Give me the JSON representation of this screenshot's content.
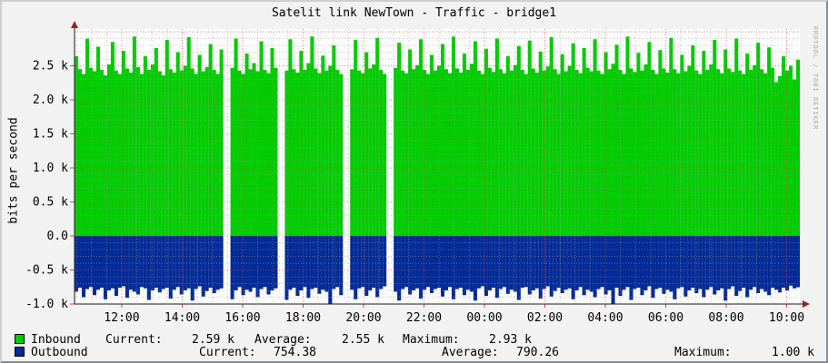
{
  "window": {
    "watermark": "RRDTOOL / TOBI OETIKER"
  },
  "chart_data": {
    "type": "area",
    "title": "Satelit link NewTown - Traffic - bridge1",
    "ylabel": "bits per second",
    "ylim": [
      -1000,
      3000
    ],
    "grid": "on",
    "legend_position": "bottom",
    "y_ticks": [
      {
        "label": "2.5 k",
        "value": 2500
      },
      {
        "label": "2.0 k",
        "value": 2000
      },
      {
        "label": "1.5 k",
        "value": 1500
      },
      {
        "label": "1.0 k",
        "value": 1000
      },
      {
        "label": "0.5 k",
        "value": 500
      },
      {
        "label": "0.0",
        "value": 0
      },
      {
        "label": "-0.5 k",
        "value": -500
      },
      {
        "label": "-1.0 k",
        "value": -1000
      }
    ],
    "x_ticks": [
      "12:00",
      "14:00",
      "16:00",
      "18:00",
      "20:00",
      "22:00",
      "00:00",
      "02:00",
      "04:00",
      "06:00",
      "08:00",
      "10:00"
    ],
    "series": [
      {
        "name": "Inbound",
        "color": "#00CC00",
        "negative": false,
        "stats": {
          "current": "2.59 k",
          "average": "2.55 k",
          "maximum": "2.93 k"
        },
        "values": [
          2640,
          2450,
          2380,
          2900,
          2470,
          2420,
          2780,
          2440,
          2360,
          2520,
          2850,
          2430,
          2380,
          2720,
          2460,
          2400,
          2930,
          2480,
          2380,
          2640,
          2440,
          2520,
          2760,
          2420,
          2360,
          2880,
          2450,
          2400,
          2700,
          2430,
          2500,
          2920,
          2460,
          2380,
          2660,
          2420,
          2480,
          2820,
          2440,
          2380,
          2740,
          null,
          null,
          2470,
          2900,
          2430,
          2380,
          2680,
          2450,
          2540,
          2420,
          2860,
          2440,
          2390,
          2760,
          2470,
          null,
          null,
          2430,
          2890,
          2450,
          2400,
          2720,
          2440,
          2540,
          2930,
          2460,
          2390,
          2650,
          2430,
          2500,
          2800,
          2440,
          2380,
          null,
          null,
          2450,
          2880,
          2430,
          2390,
          2700,
          2460,
          2520,
          2910,
          2440,
          2380,
          null,
          null,
          2470,
          2840,
          2430,
          2390,
          2740,
          2450,
          2510,
          2890,
          2440,
          2380,
          2660,
          2430,
          2500,
          2820,
          2450,
          2390,
          2930,
          2460,
          2400,
          2680,
          2440,
          2530,
          2860,
          2430,
          2380,
          2750,
          2470,
          2410,
          2900,
          2450,
          2390,
          2640,
          2430,
          2510,
          2790,
          2440,
          2380,
          2870,
          2460,
          2400,
          2710,
          2430,
          2490,
          2920,
          2450,
          2380,
          2670,
          2420,
          2500,
          2830,
          2440,
          2390,
          2760,
          2470,
          2420,
          2890,
          2430,
          2380,
          2700,
          2450,
          2530,
          2810,
          2440,
          2380,
          2930,
          2460,
          2410,
          2690,
          2430,
          2520,
          2850,
          2440,
          2380,
          2730,
          2460,
          2400,
          2910,
          2450,
          2390,
          2660,
          2420,
          2500,
          2800,
          2430,
          2380,
          2720,
          2440,
          2520,
          2880,
          2450,
          2390,
          2740,
          2460,
          2410,
          2900,
          2430,
          2380,
          2680,
          2440,
          2510,
          2840,
          2450,
          2390,
          2770,
          2470,
          2260,
          2350,
          2640,
          2430,
          2500,
          2300,
          2590
        ]
      },
      {
        "name": "Outbound",
        "color": "#002A97",
        "negative": true,
        "stats": {
          "current": "754.38",
          "average": "790.26",
          "maximum": "1.00 k"
        },
        "values": [
          820,
          760,
          900,
          780,
          750,
          870,
          790,
          760,
          930,
          800,
          770,
          880,
          760,
          740,
          910,
          790,
          820,
          860,
          750,
          770,
          940,
          800,
          760,
          830,
          780,
          760,
          920,
          790,
          750,
          860,
          800,
          770,
          950,
          780,
          740,
          890,
          810,
          760,
          840,
          790,
          770,
          null,
          null,
          930,
          800,
          750,
          870,
          790,
          820,
          760,
          900,
          780,
          750,
          860,
          800,
          770,
          null,
          null,
          940,
          790,
          760,
          880,
          800,
          750,
          910,
          780,
          760,
          850,
          790,
          820,
          1000,
          780,
          750,
          870,
          null,
          null,
          790,
          930,
          770,
          750,
          880,
          800,
          760,
          900,
          780,
          740,
          null,
          null,
          820,
          950,
          780,
          750,
          860,
          800,
          770,
          920,
          790,
          750,
          840,
          780,
          760,
          890,
          800,
          750,
          930,
          780,
          760,
          870,
          790,
          820,
          950,
          770,
          740,
          880,
          800,
          760,
          910,
          780,
          750,
          850,
          790,
          820,
          940,
          760,
          750,
          860,
          800,
          770,
          920,
          780,
          740,
          890,
          810,
          760,
          840,
          790,
          770,
          930,
          800,
          750,
          870,
          790,
          820,
          900,
          780,
          750,
          860,
          800,
          1000,
          760,
          880,
          790,
          750,
          940,
          780,
          760,
          870,
          800,
          740,
          910,
          780,
          760,
          850,
          790,
          820,
          930,
          770,
          750,
          890,
          800,
          760,
          840,
          780,
          900,
          790,
          750,
          860,
          800,
          770,
          950,
          780,
          740,
          880,
          810,
          760,
          900,
          790,
          750,
          840,
          780,
          820,
          870,
          760,
          790,
          830,
          760,
          800,
          730,
          770,
          754
        ]
      }
    ]
  },
  "legend": {
    "rows": [
      {
        "name": "Inbound",
        "color": "#00CC00",
        "cols": [
          {
            "label": "Current:",
            "value": "2.59 k"
          },
          {
            "label": "Average:",
            "value": "2.55 k"
          },
          {
            "label": "Maximum:",
            "value": "2.93 k"
          }
        ]
      },
      {
        "name": "Outbound",
        "color": "#002A97",
        "cols": [
          {
            "label": "Current:",
            "value": "754.38"
          },
          {
            "label": "Average:",
            "value": "790.26"
          },
          {
            "label": "Maximum:",
            "value": "1.00 k"
          }
        ]
      }
    ]
  }
}
